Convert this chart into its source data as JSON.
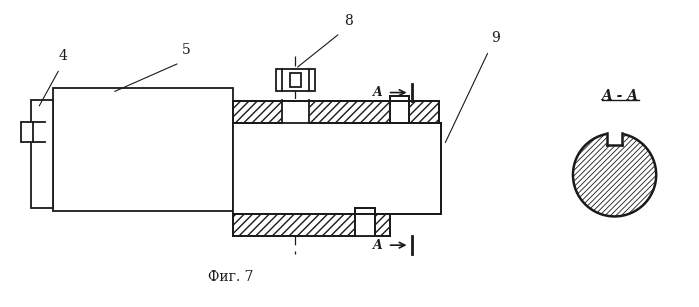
{
  "bg_color": "#ffffff",
  "lc": "#1a1a1a",
  "lw": 1.3,
  "fig_label": "Фиг. 7",
  "section_label": "A - A",
  "label4": "4",
  "label5": "5",
  "label8": "8",
  "label9": "9"
}
